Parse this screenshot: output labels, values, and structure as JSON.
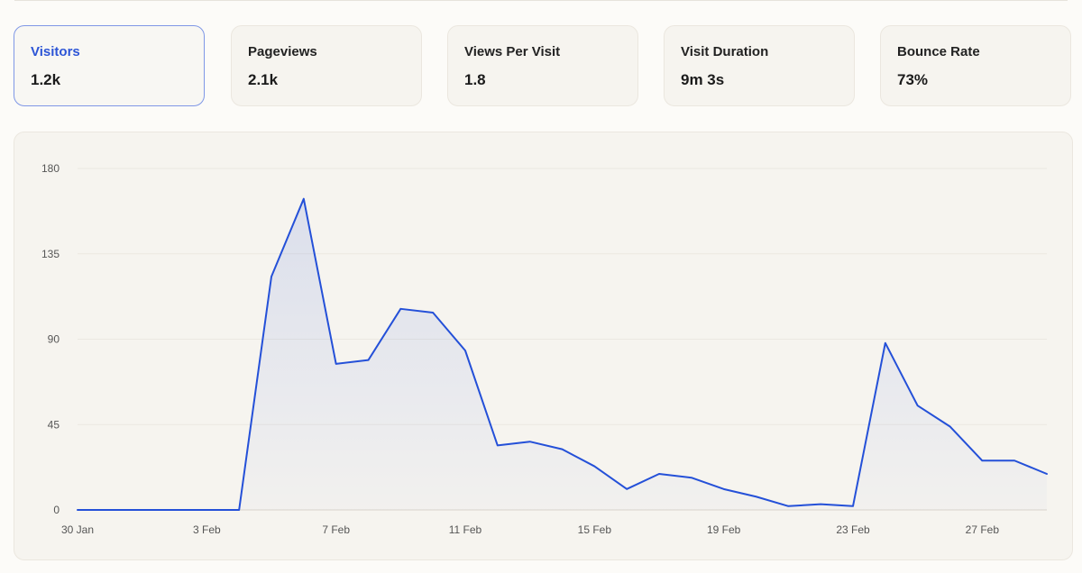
{
  "stats": [
    {
      "label": "Visitors",
      "value": "1.2k",
      "active": true
    },
    {
      "label": "Pageviews",
      "value": "2.1k",
      "active": false
    },
    {
      "label": "Views Per Visit",
      "value": "1.8",
      "active": false
    },
    {
      "label": "Visit Duration",
      "value": "9m 3s",
      "active": false
    },
    {
      "label": "Bounce Rate",
      "value": "73%",
      "active": false
    }
  ],
  "colors": {
    "line": "#2450d8",
    "accent": "#2d55d6",
    "grid": "#ebe8e1"
  },
  "chart_data": {
    "type": "area",
    "title": "",
    "xlabel": "",
    "ylabel": "",
    "ylim": [
      0,
      180
    ],
    "yticks": [
      0,
      45,
      90,
      135,
      180
    ],
    "xtick_labels": [
      "30 Jan",
      "3 Feb",
      "7 Feb",
      "11 Feb",
      "15 Feb",
      "19 Feb",
      "23 Feb",
      "27 Feb"
    ],
    "series": [
      {
        "name": "Visitors",
        "x": [
          "30 Jan",
          "31 Jan",
          "1 Feb",
          "2 Feb",
          "3 Feb",
          "4 Feb",
          "5 Feb",
          "6 Feb",
          "7 Feb",
          "8 Feb",
          "9 Feb",
          "10 Feb",
          "11 Feb",
          "12 Feb",
          "13 Feb",
          "14 Feb",
          "15 Feb",
          "16 Feb",
          "17 Feb",
          "18 Feb",
          "19 Feb",
          "20 Feb",
          "21 Feb",
          "22 Feb",
          "23 Feb",
          "24 Feb",
          "25 Feb",
          "26 Feb",
          "27 Feb",
          "28 Feb",
          "29 Feb"
        ],
        "values": [
          0,
          0,
          0,
          0,
          0,
          0,
          123,
          164,
          77,
          79,
          106,
          104,
          84,
          34,
          36,
          32,
          23,
          11,
          19,
          17,
          11,
          7,
          2,
          3,
          2,
          88,
          55,
          44,
          26,
          26,
          19
        ]
      }
    ]
  }
}
